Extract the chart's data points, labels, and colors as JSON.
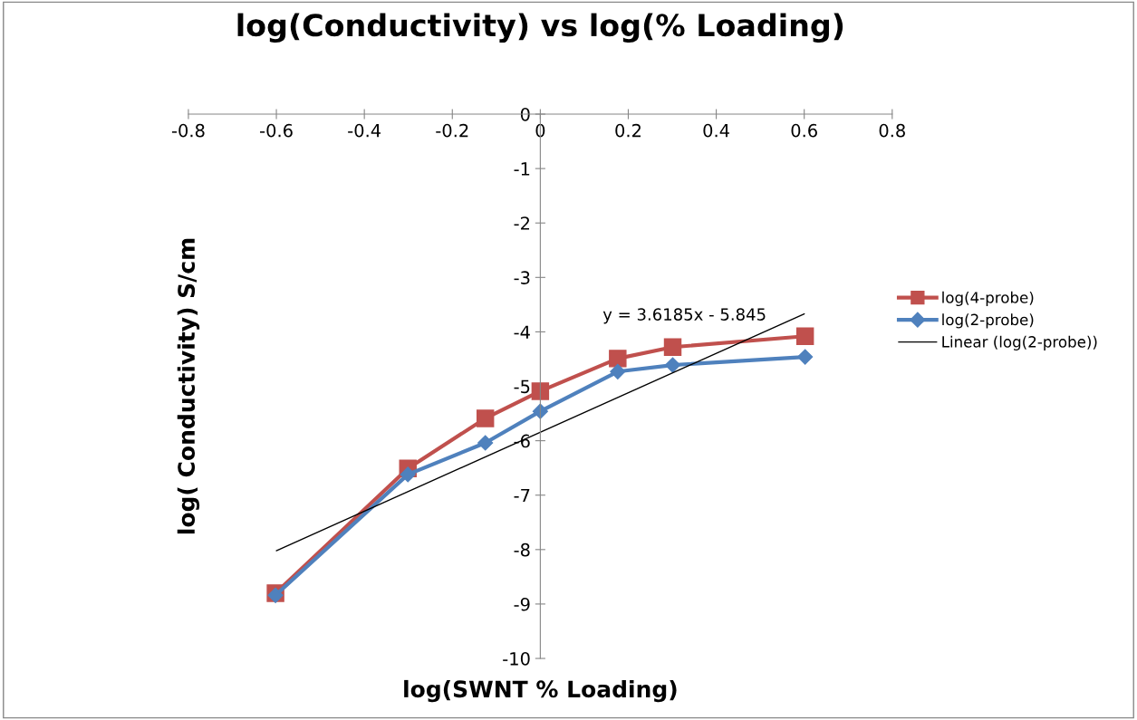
{
  "chart_data": {
    "type": "line",
    "title": "log(Conductivity) vs log(% Loading)",
    "xlabel": "log(SWNT % Loading)",
    "ylabel": "log( Conductivity) S/cm",
    "xlim": [
      -0.8,
      0.8
    ],
    "xticks": [
      -0.8,
      -0.6,
      -0.4,
      -0.2,
      0,
      0.2,
      0.4,
      0.6,
      0.8
    ],
    "ylim": [
      -10,
      0
    ],
    "yticks": [
      0,
      -1,
      -2,
      -3,
      -4,
      -5,
      -6,
      -7,
      -8,
      -9,
      -10
    ],
    "x": [
      -0.602,
      -0.301,
      -0.125,
      0,
      0.176,
      0.301,
      0.602
    ],
    "series": [
      {
        "name": "log(4-probe)",
        "color": "#c0504d",
        "marker": "square",
        "values": [
          -8.8,
          -6.51,
          -5.59,
          -5.09,
          -4.49,
          -4.28,
          -4.08
        ]
      },
      {
        "name": "log(2-probe)",
        "color": "#4f81bd",
        "marker": "diamond",
        "values": [
          -8.84,
          -6.62,
          -6.04,
          -5.46,
          -4.73,
          -4.61,
          -4.46
        ]
      },
      {
        "name": "Linear (log(2-probe))",
        "color": "#000000",
        "marker": "none",
        "x": [
          -0.6,
          0.6
        ],
        "values": [
          -8.02,
          -3.67
        ]
      }
    ],
    "annotations": [
      "y = 3.6185x - 5.845"
    ],
    "legend": "right",
    "grid": false
  }
}
